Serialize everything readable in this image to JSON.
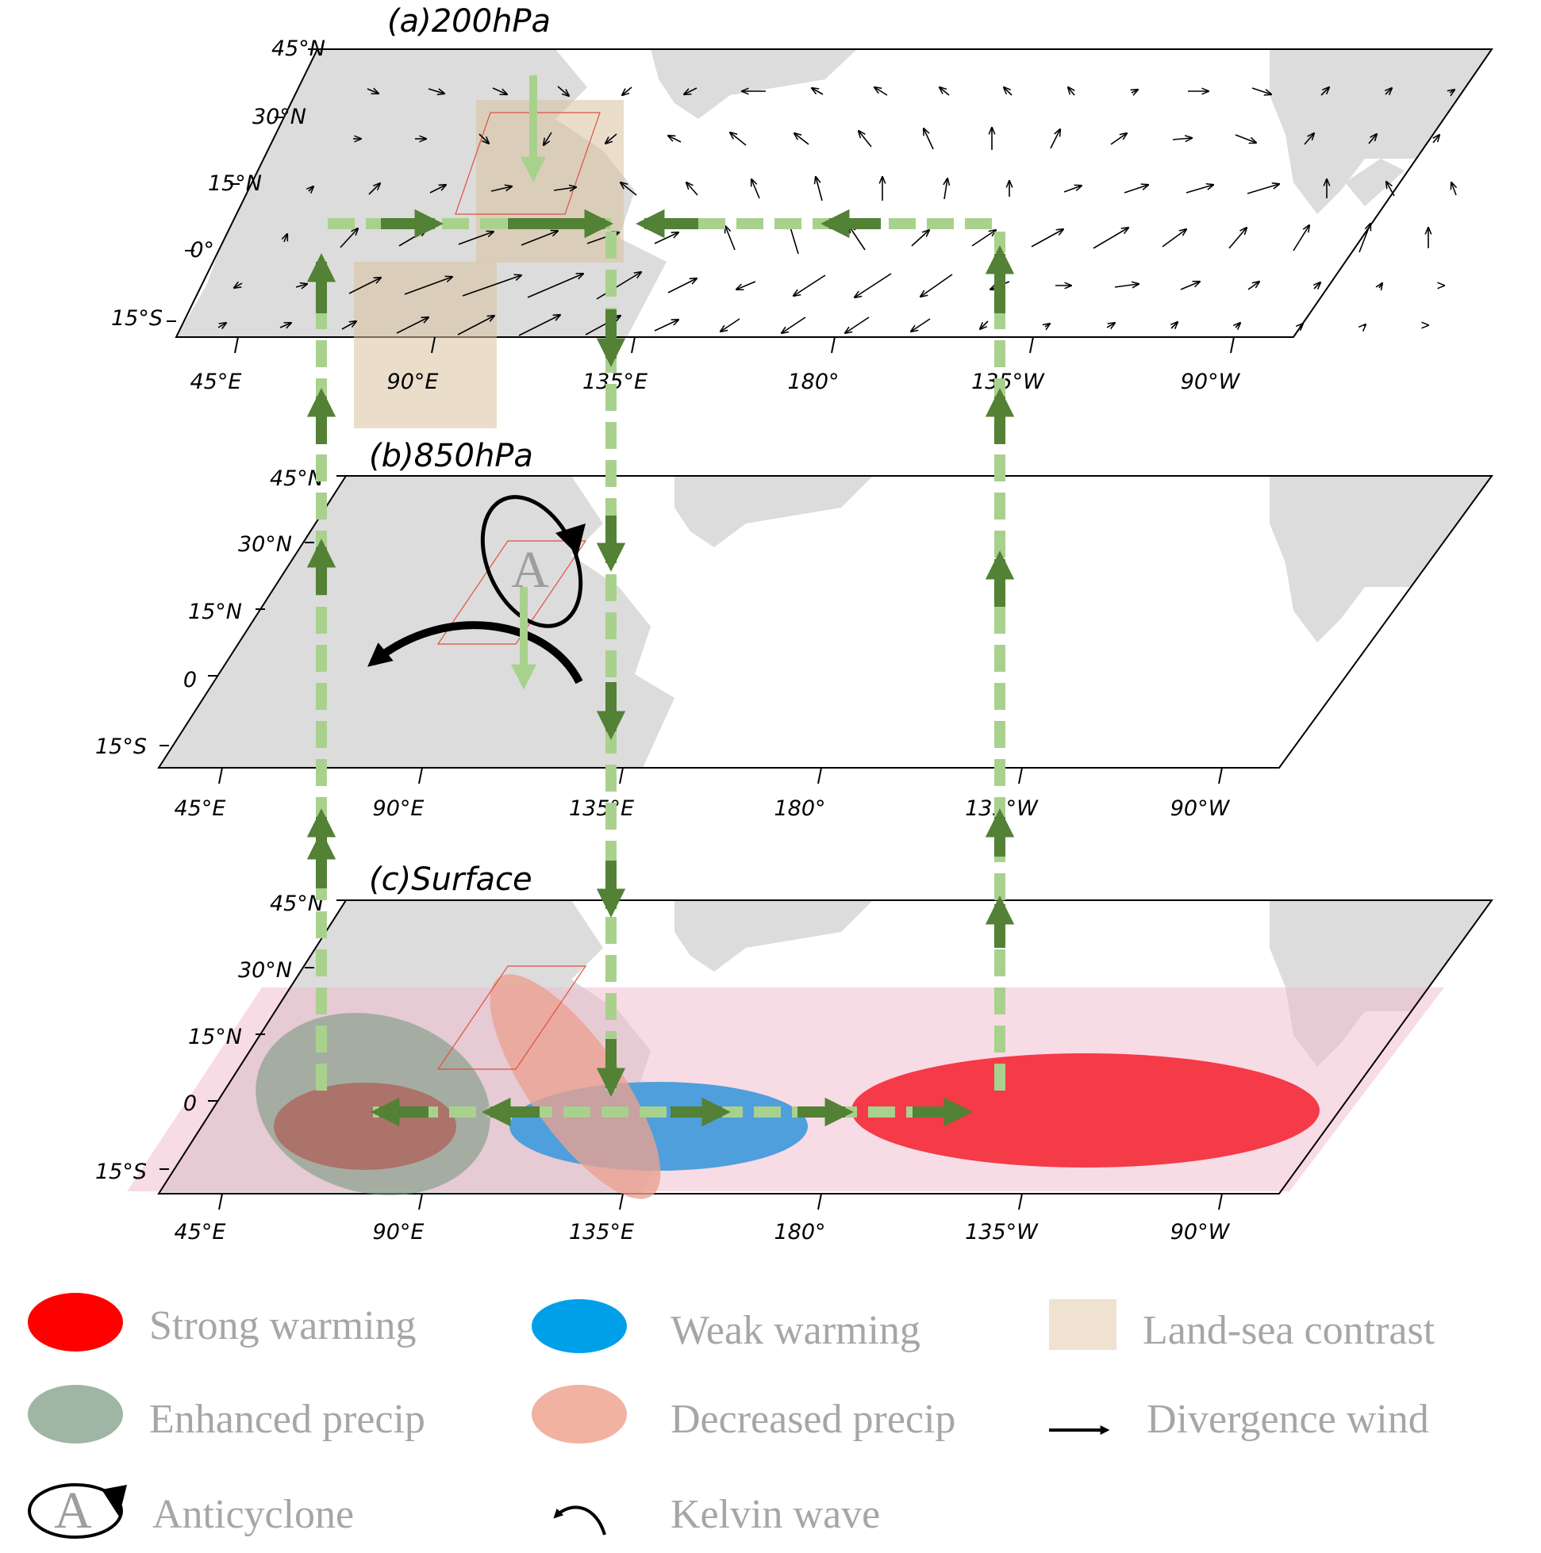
{
  "panels": [
    {
      "id": "a",
      "title": "(a)200hPa",
      "lat_labels": [
        "45°N",
        "30°N",
        "15°N",
        "0°",
        "15°S"
      ],
      "lon_labels": [
        "45°E",
        "90°E",
        "135°E",
        "180°",
        "135°W",
        "90°W"
      ]
    },
    {
      "id": "b",
      "title": "(b)850hPa",
      "lat_labels": [
        "45°N",
        "30°N",
        "15°N",
        "0",
        "15°S"
      ],
      "lon_labels": [
        "45°E",
        "90°E",
        "135°E",
        "180°",
        "135°W",
        "90°W"
      ]
    },
    {
      "id": "c",
      "title": "(c)Surface",
      "lat_labels": [
        "45°N",
        "30°N",
        "15°N",
        "0",
        "15°S"
      ],
      "lon_labels": [
        "45°E",
        "90°E",
        "135°E",
        "180°",
        "135°W",
        "90°W"
      ]
    }
  ],
  "anticyclone_symbol": "A",
  "legend": [
    {
      "label": "Strong warming",
      "color": "#ff0000",
      "icon": "red-ellipse-icon"
    },
    {
      "label": "Weak warming",
      "color": "#00a0e9",
      "icon": "blue-ellipse-icon"
    },
    {
      "label": "Land-sea contrast",
      "color": "#efe2d0",
      "icon": "tan-square-icon"
    },
    {
      "label": "Enhanced precip",
      "color": "#9fb6a5",
      "icon": "green-ellipse-icon"
    },
    {
      "label": "Decreased precip",
      "color": "#f1b2a2",
      "icon": "salmon-ellipse-icon"
    },
    {
      "label": "Divergence wind",
      "color": "#000000",
      "icon": "black-arrow-icon"
    },
    {
      "label": "Anticyclone",
      "color": "#000000",
      "icon": "anticyclone-icon"
    },
    {
      "label": "Kelvin wave",
      "color": "#000000",
      "icon": "curved-arrow-icon"
    }
  ],
  "colors": {
    "land": "#dcdcdc",
    "dark_green": "#538135",
    "light_green": "#a9d18e",
    "pink_band": "#f6d9e3",
    "tan_box": "#e6cfae"
  }
}
